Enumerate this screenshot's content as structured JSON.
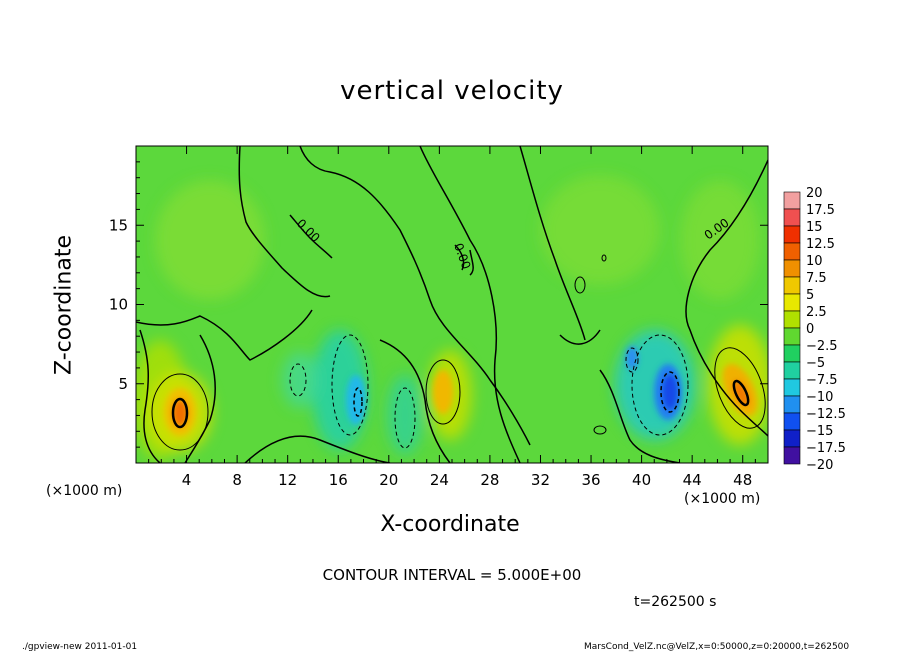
{
  "chart_data": {
    "type": "heatmap",
    "title": "vertical velocity",
    "xlabel": "X-coordinate",
    "ylabel": "Z-coordinate",
    "x_unit_label": "(×1000 m)",
    "x_unit_label_right": "(×1000 m)",
    "xlim": [
      0,
      50
    ],
    "ylim": [
      0,
      20
    ],
    "x_ticks": [
      4,
      8,
      12,
      16,
      20,
      24,
      28,
      32,
      36,
      40,
      44,
      48
    ],
    "y_ticks": [
      5,
      10,
      15
    ],
    "contour_interval_text": "CONTOUR INTERVAL = 5.000E+00",
    "time_text": "t=262500 s",
    "contour_labels": [
      "0.00",
      "0.00",
      "0.00"
    ],
    "colorbar": {
      "labels": [
        "20",
        "17.5",
        "15",
        "12.5",
        "10",
        "7.5",
        "5",
        "2.5",
        "0",
        "−2.5",
        "−5",
        "−7.5",
        "−10",
        "−12.5",
        "−15",
        "−17.5",
        "−20"
      ],
      "colors": [
        "#f2a0a0",
        "#f05050",
        "#f03000",
        "#f06000",
        "#f09000",
        "#f0c800",
        "#e8e800",
        "#b0e000",
        "#60d830",
        "#20d060",
        "#20d0a0",
        "#20c8e0",
        "#2090f0",
        "#1050f0",
        "#1020c8",
        "#4010a0",
        "#7010a0"
      ]
    },
    "features": [
      {
        "kind": "updraft",
        "x": 3.5,
        "z": 3.2,
        "max": 12.5
      },
      {
        "kind": "updraft",
        "x": 23.5,
        "z": 4.5,
        "max": 9
      },
      {
        "kind": "updraft",
        "x": 47.5,
        "z": 4.2,
        "max": 11
      },
      {
        "kind": "downdraft",
        "x": 17.8,
        "z": 4.0,
        "min": -9
      },
      {
        "kind": "downdraft",
        "x": 42,
        "z": 4.8,
        "min": -14
      },
      {
        "kind": "downdraft",
        "x": 39.2,
        "z": 6.2,
        "min": -8
      }
    ]
  },
  "footer": {
    "left": "./gpview-new   2011-01-01",
    "right": "MarsCond_VelZ.nc@VelZ,x=0:50000,z=0:20000,t=262500"
  }
}
